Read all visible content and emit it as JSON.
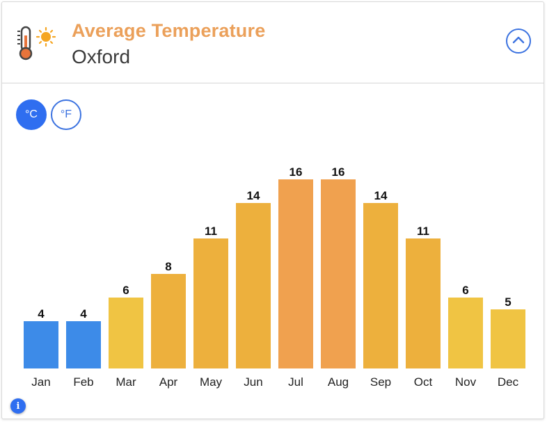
{
  "header": {
    "title": "Average Temperature",
    "location": "Oxford"
  },
  "units": {
    "celsius_label": "°C",
    "fahrenheit_label": "°F",
    "selected": "celsius"
  },
  "info_label": "i",
  "colors": {
    "title": "#eba05a",
    "accent": "#2f6ef0",
    "cold": "#3d8be8",
    "mild": "#f0c443",
    "warm": "#edb03d",
    "hot": "#f0a14f"
  },
  "chart_data": {
    "type": "bar",
    "title": "",
    "xlabel": "",
    "ylabel": "",
    "categories": [
      "Jan",
      "Feb",
      "Mar",
      "Apr",
      "May",
      "Jun",
      "Jul",
      "Aug",
      "Sep",
      "Oct",
      "Nov",
      "Dec"
    ],
    "values": [
      4,
      4,
      6,
      8,
      11,
      14,
      16,
      16,
      14,
      11,
      6,
      5
    ],
    "data_labels": true,
    "grid": false,
    "ylim": [
      0,
      16
    ]
  }
}
